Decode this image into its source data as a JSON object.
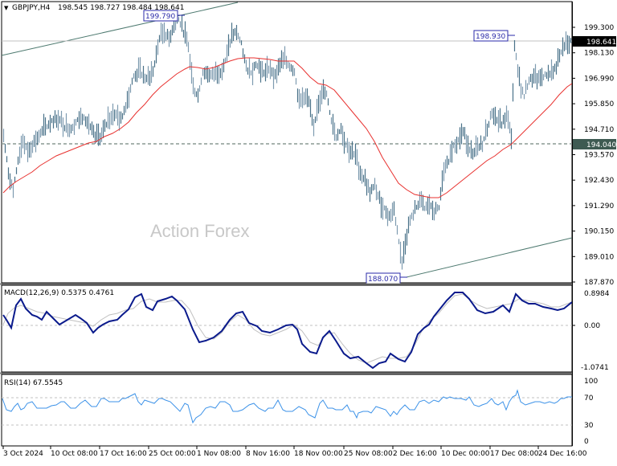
{
  "header": {
    "symbol_label": "GBPJPY,H4",
    "ohlc": "198.545 198.727 198.484 198.641"
  },
  "watermark": "Action Forex",
  "price_axis": {
    "ticks": [
      "199.300",
      "198.130",
      "196.990",
      "195.850",
      "194.710",
      "193.570",
      "192.430",
      "191.290",
      "190.150",
      "189.010",
      "187.870"
    ],
    "current_price": "198.641",
    "level_marker": "194.040"
  },
  "annotations": {
    "high_label": "199.790",
    "recent_high_label": "198.930",
    "low_label": "188.070"
  },
  "macd": {
    "title": "MACD(12,26,9) 0.5375 0.4761",
    "ticks": [
      "0.8984",
      "0.00",
      "-1.0741"
    ]
  },
  "rsi": {
    "title": "RSI(14) 67.5545",
    "ticks": [
      "100",
      "70",
      "30",
      "0"
    ]
  },
  "time_axis": {
    "labels": [
      "3 Oct 2024",
      "10 Oct 08:00",
      "17 Oct 16:00",
      "25 Oct 00:00",
      "1 Nov 08:00",
      "8 Nov 16:00",
      "18 Nov 00:00",
      "25 Nov 08:00",
      "2 Dec 16:00",
      "10 Dec 00:00",
      "17 Dec 08:00",
      "24 Dec 16:00"
    ]
  },
  "colors": {
    "bars": "#4a7289",
    "bars_light": "#7e9bb0",
    "ma": "#e8312f",
    "macd_main": "#0a1a8c",
    "macd_signal": "#c0c0c0",
    "rsi": "#3c92e8",
    "trendline": "#4e7a70",
    "label_box": "#2a2aa8"
  },
  "chart_data": [
    {
      "type": "line",
      "title": "GBPJPY,H4",
      "subtitle": "198.545 198.727 198.484 198.641",
      "xlabel": "",
      "ylabel": "Price",
      "ylim": [
        187.87,
        199.9
      ],
      "x": [
        "3 Oct 2024",
        "10 Oct 08:00",
        "17 Oct 16:00",
        "25 Oct 00:00",
        "1 Nov 08:00",
        "8 Nov 16:00",
        "18 Nov 00:00",
        "25 Nov 08:00",
        "2 Dec 16:00",
        "10 Dec 00:00",
        "17 Dec 08:00",
        "24 Dec 16:00"
      ],
      "series": [
        {
          "name": "GBPJPY close (approx)",
          "values": [
            194.8,
            194.6,
            195.3,
            198.6,
            197.0,
            198.0,
            196.2,
            191.5,
            189.5,
            193.8,
            194.5,
            198.0
          ]
        },
        {
          "name": "MA (red, approx)",
          "values": [
            192.1,
            193.5,
            194.7,
            196.7,
            197.8,
            197.8,
            197.3,
            194.2,
            192.0,
            192.2,
            193.9,
            196.4
          ]
        }
      ],
      "annotations": [
        "199.790 high",
        "198.930",
        "188.070 low",
        "194.040 horizontal level",
        "198.641 current"
      ],
      "grid": false
    },
    {
      "type": "line",
      "title": "MACD(12,26,9) 0.5375 0.4761",
      "ylim": [
        -1.0741,
        0.8984
      ],
      "x": [
        "3 Oct 2024",
        "10 Oct 08:00",
        "17 Oct 16:00",
        "25 Oct 00:00",
        "1 Nov 08:00",
        "8 Nov 16:00",
        "18 Nov 00:00",
        "25 Nov 08:00",
        "2 Dec 16:00",
        "10 Dec 00:00",
        "17 Dec 08:00",
        "24 Dec 16:00"
      ],
      "series": [
        {
          "name": "MACD",
          "values": [
            0.5,
            0.35,
            0.25,
            0.65,
            -0.35,
            -0.3,
            0.1,
            -0.7,
            -1.0,
            0.6,
            0.55,
            0.54
          ]
        },
        {
          "name": "Signal",
          "values": [
            0.4,
            0.4,
            0.28,
            0.6,
            -0.2,
            -0.25,
            0.0,
            -0.6,
            -0.9,
            0.5,
            0.6,
            0.48
          ]
        }
      ]
    },
    {
      "type": "line",
      "title": "RSI(14) 67.5545",
      "ylim": [
        0,
        100
      ],
      "levels": [
        30,
        70
      ],
      "x": [
        "3 Oct 2024",
        "10 Oct 08:00",
        "17 Oct 16:00",
        "25 Oct 00:00",
        "1 Nov 08:00",
        "8 Nov 16:00",
        "18 Nov 00:00",
        "25 Nov 08:00",
        "2 Dec 16:00",
        "10 Dec 00:00",
        "17 Dec 08:00",
        "24 Dec 16:00"
      ],
      "series": [
        {
          "name": "RSI(14)",
          "values": [
            55,
            52,
            55,
            58,
            40,
            45,
            35,
            35,
            34,
            58,
            62,
            67.55
          ]
        }
      ]
    }
  ]
}
